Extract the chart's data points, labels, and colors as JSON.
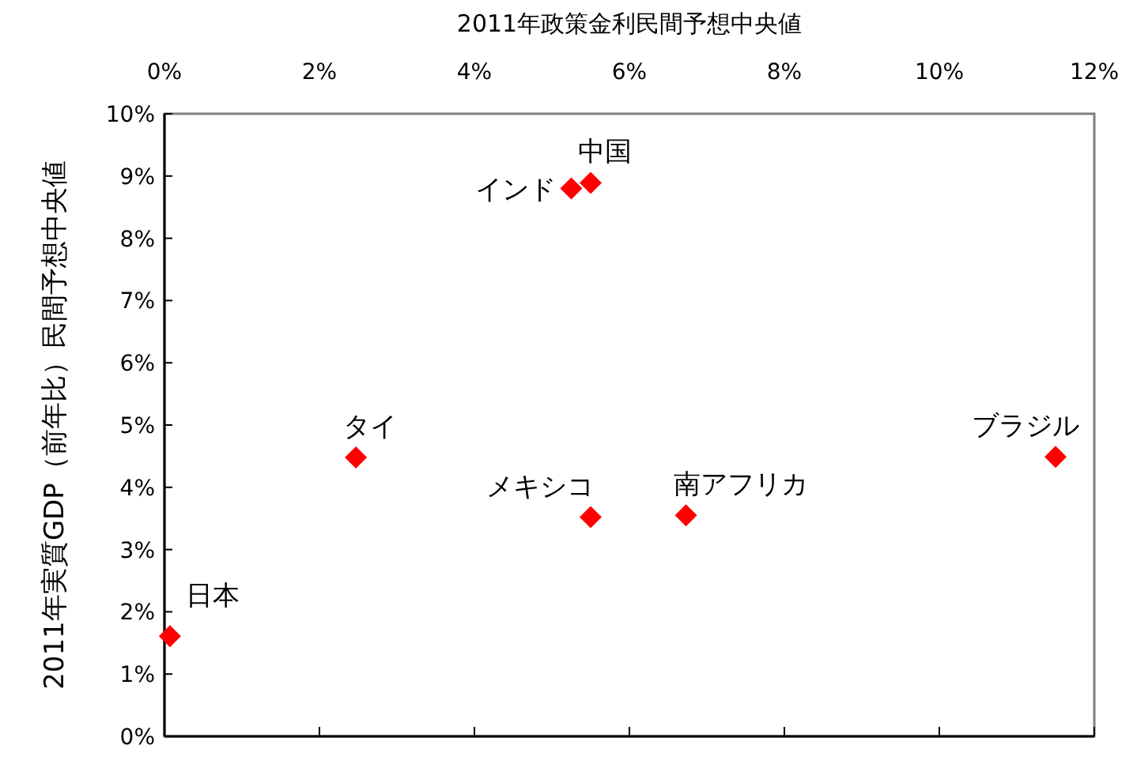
{
  "chart_data": {
    "type": "scatter",
    "xlabel": "2011年政策金利民間予想中央値",
    "ylabel": "2011年実質GDP（前年比）民間予想中央値",
    "x": [
      0.07,
      2.47,
      5.25,
      5.5,
      5.5,
      6.73,
      11.5
    ],
    "values": [
      1.61,
      4.48,
      8.8,
      8.89,
      3.52,
      3.55,
      4.49
    ],
    "color": "#ff0000",
    "marker": "diamond",
    "legend": false,
    "xlim": [
      0,
      12
    ],
    "xticks": [
      {
        "value": 0,
        "label": "0%"
      },
      {
        "value": 2,
        "label": "2%"
      },
      {
        "value": 4,
        "label": "4%"
      },
      {
        "value": 6,
        "label": "6%"
      },
      {
        "value": 8,
        "label": "8%"
      },
      {
        "value": 10,
        "label": "10%"
      },
      {
        "value": 12,
        "label": "12%"
      }
    ],
    "ylim": [
      0,
      10
    ],
    "yticks": [
      {
        "value": 0,
        "label": "0%"
      },
      {
        "value": 1,
        "label": "1%"
      },
      {
        "value": 2,
        "label": "2%"
      },
      {
        "value": 3,
        "label": "3%"
      },
      {
        "value": 4,
        "label": "4%"
      },
      {
        "value": 5,
        "label": "5%"
      },
      {
        "value": 6,
        "label": "6%"
      },
      {
        "value": 7,
        "label": "7%"
      },
      {
        "value": 8,
        "label": "8%"
      },
      {
        "value": 9,
        "label": "9%"
      },
      {
        "value": 10,
        "label": "10%"
      }
    ],
    "annotations": [
      {
        "text": "日本",
        "x": 0.07,
        "y": 1.61
      },
      {
        "text": "タイ",
        "x": 2.47,
        "y": 4.48
      },
      {
        "text": "インド",
        "x": 5.25,
        "y": 8.8
      },
      {
        "text": "中国",
        "x": 5.5,
        "y": 8.89
      },
      {
        "text": "メキシコ",
        "x": 5.5,
        "y": 3.52
      },
      {
        "text": "南アフリカ",
        "x": 6.73,
        "y": 3.55
      },
      {
        "text": "ブラジル",
        "x": 11.5,
        "y": 4.49
      }
    ]
  }
}
